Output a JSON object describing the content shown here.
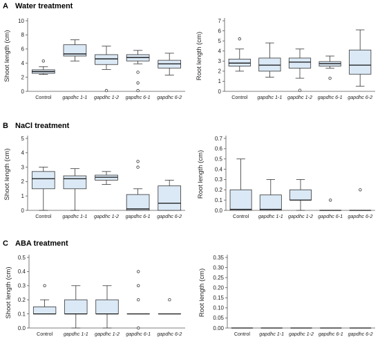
{
  "sections": [
    {
      "letter": "A",
      "title": "Water treatment"
    },
    {
      "letter": "B",
      "title": "NaCl treatment"
    },
    {
      "letter": "C",
      "title": "ABA treatment"
    }
  ],
  "colors": {
    "box_fill": "#dbe9f6",
    "box_stroke": "#333333",
    "axis": "#555555"
  },
  "chart_data": [
    {
      "type": "boxplot",
      "panel": "A-left",
      "ylabel": "Shoot length (cm)",
      "ylim": [
        0,
        10
      ],
      "yticks": [
        0,
        2,
        4,
        6,
        8,
        10
      ],
      "categories": [
        "Control",
        "gapdhc 1-1",
        "gapdhc 1-2",
        "gapdhc 6-1",
        "gapdhc 6-2"
      ],
      "boxes": [
        {
          "min": 2.4,
          "q1": 2.55,
          "median": 2.8,
          "q3": 3.05,
          "max": 3.5,
          "outliers": [
            4.3
          ]
        },
        {
          "min": 4.3,
          "q1": 5.0,
          "median": 5.3,
          "q3": 6.6,
          "max": 7.3,
          "outliers": []
        },
        {
          "min": 3.1,
          "q1": 3.8,
          "median": 4.6,
          "q3": 5.2,
          "max": 6.4,
          "outliers": [
            0.1
          ]
        },
        {
          "min": 3.9,
          "q1": 4.3,
          "median": 4.8,
          "q3": 5.2,
          "max": 5.8,
          "outliers": [
            2.7,
            1.2,
            0.1
          ]
        },
        {
          "min": 2.3,
          "q1": 3.3,
          "median": 3.9,
          "q3": 4.4,
          "max": 5.4,
          "outliers": []
        }
      ]
    },
    {
      "type": "boxplot",
      "panel": "A-right",
      "ylabel": "Root length (cm)",
      "ylim": [
        0,
        7
      ],
      "yticks": [
        0,
        1,
        2,
        3,
        4,
        5,
        6,
        7
      ],
      "categories": [
        "Control",
        "gapdhc 1-1",
        "gapdhc 1-2",
        "gapdhc 6-1",
        "gapdhc 6-2"
      ],
      "boxes": [
        {
          "min": 2.0,
          "q1": 2.5,
          "median": 2.8,
          "q3": 3.2,
          "max": 4.2,
          "outliers": [
            5.2
          ]
        },
        {
          "min": 1.4,
          "q1": 2.0,
          "median": 2.6,
          "q3": 3.3,
          "max": 4.8,
          "outliers": []
        },
        {
          "min": 1.3,
          "q1": 2.3,
          "median": 2.9,
          "q3": 3.3,
          "max": 4.2,
          "outliers": [
            0.1
          ]
        },
        {
          "min": 2.3,
          "q1": 2.5,
          "median": 2.75,
          "q3": 2.95,
          "max": 3.5,
          "outliers": [
            1.3
          ]
        },
        {
          "min": 0.5,
          "q1": 1.7,
          "median": 2.6,
          "q3": 4.1,
          "max": 6.1,
          "outliers": []
        }
      ]
    },
    {
      "type": "boxplot",
      "panel": "B-left",
      "ylabel": "Shoot length (cm)",
      "ylim": [
        0,
        5
      ],
      "yticks": [
        0,
        1,
        2,
        3,
        4,
        5
      ],
      "categories": [
        "Control",
        "gapdhc 1-1",
        "gapdhc 1-2",
        "gapdhc 6-1",
        "gapdhc 6-2"
      ],
      "boxes": [
        {
          "min": 0.0,
          "q1": 1.5,
          "median": 2.2,
          "q3": 2.7,
          "max": 3.0,
          "outliers": []
        },
        {
          "min": 0.0,
          "q1": 1.5,
          "median": 2.2,
          "q3": 2.4,
          "max": 2.9,
          "outliers": []
        },
        {
          "min": 1.8,
          "q1": 2.1,
          "median": 2.3,
          "q3": 2.45,
          "max": 2.7,
          "outliers": []
        },
        {
          "min": 0.0,
          "q1": 0.0,
          "median": 0.1,
          "q3": 1.1,
          "max": 1.5,
          "outliers": [
            3.0,
            3.4
          ]
        },
        {
          "min": 0.0,
          "q1": 0.0,
          "median": 0.5,
          "q3": 1.7,
          "max": 2.1,
          "outliers": []
        }
      ]
    },
    {
      "type": "boxplot",
      "panel": "B-right",
      "ylabel": "Root length (cm)",
      "ylim": [
        0,
        0.7
      ],
      "yticks": [
        0.0,
        0.1,
        0.2,
        0.3,
        0.4,
        0.5,
        0.6,
        0.7
      ],
      "ytick_labels": [
        "0.0",
        "0.1",
        "0.2",
        "0.3",
        "0.4",
        "0.5",
        "0.6",
        "0.7"
      ],
      "categories": [
        "Control",
        "gapdhc 1-1",
        "gapdhc 1-2",
        "gapdhc 6-1",
        "gapdhc 6-2"
      ],
      "boxes": [
        {
          "min": 0.0,
          "q1": 0.0,
          "median": 0.01,
          "q3": 0.2,
          "max": 0.5,
          "outliers": []
        },
        {
          "min": 0.0,
          "q1": 0.0,
          "median": 0.01,
          "q3": 0.15,
          "max": 0.3,
          "outliers": []
        },
        {
          "min": 0.0,
          "q1": 0.1,
          "median": 0.1,
          "q3": 0.2,
          "max": 0.3,
          "outliers": []
        },
        {
          "min": 0.0,
          "q1": 0.0,
          "median": 0.0,
          "q3": 0.0,
          "max": 0.0,
          "outliers": [
            0.1
          ]
        },
        {
          "min": 0.0,
          "q1": 0.0,
          "median": 0.0,
          "q3": 0.0,
          "max": 0.0,
          "outliers": [
            0.2
          ]
        }
      ]
    },
    {
      "type": "boxplot",
      "panel": "C-left",
      "ylabel": "Shoot length (cm)",
      "ylim": [
        0,
        0.5
      ],
      "yticks": [
        0.0,
        0.1,
        0.2,
        0.3,
        0.4,
        0.5
      ],
      "ytick_labels": [
        "0.0",
        "0.1",
        "0.2",
        "0.3",
        "0.4",
        "0.5"
      ],
      "categories": [
        "Control",
        "gapdhc 1-1",
        "gapdhc 1-2",
        "gapdhc 6-1",
        "gapdhc 6-2"
      ],
      "boxes": [
        {
          "min": 0.1,
          "q1": 0.1,
          "median": 0.1,
          "q3": 0.15,
          "max": 0.2,
          "outliers": [
            0.3
          ]
        },
        {
          "min": 0.0,
          "q1": 0.1,
          "median": 0.1,
          "q3": 0.2,
          "max": 0.3,
          "outliers": []
        },
        {
          "min": 0.0,
          "q1": 0.1,
          "median": 0.1,
          "q3": 0.2,
          "max": 0.3,
          "outliers": []
        },
        {
          "min": 0.1,
          "q1": 0.1,
          "median": 0.1,
          "q3": 0.1,
          "max": 0.1,
          "outliers": [
            0.0,
            0.2,
            0.3,
            0.4
          ]
        },
        {
          "min": 0.1,
          "q1": 0.1,
          "median": 0.1,
          "q3": 0.1,
          "max": 0.1,
          "outliers": [
            0.2
          ]
        }
      ]
    },
    {
      "type": "boxplot",
      "panel": "C-right",
      "ylabel": "Root length (cm)",
      "ylim": [
        0,
        0.35
      ],
      "yticks": [
        0.0,
        0.05,
        0.1,
        0.15,
        0.2,
        0.25,
        0.3,
        0.35
      ],
      "ytick_labels": [
        "0.00",
        "0.05",
        "0.10",
        "0.15",
        "0.20",
        "0.25",
        "0.30",
        "0.35"
      ],
      "categories": [
        "Control",
        "gapdhc 1-1",
        "gapdhc 1-2",
        "gapdhc 6-1",
        "gapdhc 6-2"
      ],
      "boxes": [
        {
          "min": 0.0,
          "q1": 0.0,
          "median": 0.0,
          "q3": 0.0,
          "max": 0.0,
          "outliers": []
        },
        {
          "min": 0.0,
          "q1": 0.0,
          "median": 0.0,
          "q3": 0.0,
          "max": 0.0,
          "outliers": []
        },
        {
          "min": 0.0,
          "q1": 0.0,
          "median": 0.0,
          "q3": 0.0,
          "max": 0.0,
          "outliers": []
        },
        {
          "min": 0.0,
          "q1": 0.0,
          "median": 0.0,
          "q3": 0.0,
          "max": 0.0,
          "outliers": []
        },
        {
          "min": 0.0,
          "q1": 0.0,
          "median": 0.0,
          "q3": 0.0,
          "max": 0.0,
          "outliers": []
        }
      ]
    }
  ]
}
